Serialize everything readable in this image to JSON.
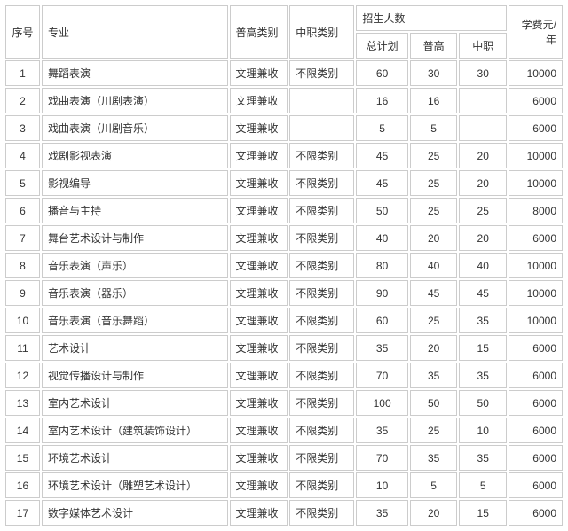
{
  "table": {
    "headers": {
      "seq": "序号",
      "major": "专业",
      "pugao_type": "普高类别",
      "zhongzhi_type": "中职类别",
      "enrollment": "招生人数",
      "total": "总计划",
      "pugao": "普高",
      "zhongzhi": "中职",
      "fee": "学费元/年"
    },
    "rows": [
      {
        "seq": "1",
        "major": "舞蹈表演",
        "pugao_type": "文理兼收",
        "zhongzhi_type": "不限类别",
        "total": "60",
        "pugao": "30",
        "zhongzhi": "30",
        "fee": "10000"
      },
      {
        "seq": "2",
        "major": "戏曲表演（川剧表演）",
        "pugao_type": "文理兼收",
        "zhongzhi_type": "",
        "total": "16",
        "pugao": "16",
        "zhongzhi": "",
        "fee": "6000"
      },
      {
        "seq": "3",
        "major": "戏曲表演（川剧音乐）",
        "pugao_type": "文理兼收",
        "zhongzhi_type": "",
        "total": "5",
        "pugao": "5",
        "zhongzhi": "",
        "fee": "6000"
      },
      {
        "seq": "4",
        "major": "戏剧影视表演",
        "pugao_type": "文理兼收",
        "zhongzhi_type": "不限类别",
        "total": "45",
        "pugao": "25",
        "zhongzhi": "20",
        "fee": "10000"
      },
      {
        "seq": "5",
        "major": "影视编导",
        "pugao_type": "文理兼收",
        "zhongzhi_type": "不限类别",
        "total": "45",
        "pugao": "25",
        "zhongzhi": "20",
        "fee": "10000"
      },
      {
        "seq": "6",
        "major": "播音与主持",
        "pugao_type": "文理兼收",
        "zhongzhi_type": "不限类别",
        "total": "50",
        "pugao": "25",
        "zhongzhi": "25",
        "fee": "8000"
      },
      {
        "seq": "7",
        "major": "舞台艺术设计与制作",
        "pugao_type": "文理兼收",
        "zhongzhi_type": "不限类别",
        "total": "40",
        "pugao": "20",
        "zhongzhi": "20",
        "fee": "6000"
      },
      {
        "seq": "8",
        "major": "音乐表演（声乐）",
        "pugao_type": "文理兼收",
        "zhongzhi_type": "不限类别",
        "total": "80",
        "pugao": "40",
        "zhongzhi": "40",
        "fee": "10000"
      },
      {
        "seq": "9",
        "major": "音乐表演（器乐）",
        "pugao_type": "文理兼收",
        "zhongzhi_type": "不限类别",
        "total": "90",
        "pugao": "45",
        "zhongzhi": "45",
        "fee": "10000"
      },
      {
        "seq": "10",
        "major": "音乐表演（音乐舞蹈）",
        "pugao_type": "文理兼收",
        "zhongzhi_type": "不限类别",
        "total": "60",
        "pugao": "25",
        "zhongzhi": "35",
        "fee": "10000"
      },
      {
        "seq": "11",
        "major": "艺术设计",
        "pugao_type": "文理兼收",
        "zhongzhi_type": "不限类别",
        "total": "35",
        "pugao": "20",
        "zhongzhi": "15",
        "fee": "6000"
      },
      {
        "seq": "12",
        "major": "视觉传播设计与制作",
        "pugao_type": "文理兼收",
        "zhongzhi_type": "不限类别",
        "total": "70",
        "pugao": "35",
        "zhongzhi": "35",
        "fee": "6000"
      },
      {
        "seq": "13",
        "major": "室内艺术设计",
        "pugao_type": "文理兼收",
        "zhongzhi_type": "不限类别",
        "total": "100",
        "pugao": "50",
        "zhongzhi": "50",
        "fee": "6000"
      },
      {
        "seq": "14",
        "major": "室内艺术设计（建筑装饰设计）",
        "pugao_type": "文理兼收",
        "zhongzhi_type": "不限类别",
        "total": "35",
        "pugao": "25",
        "zhongzhi": "10",
        "fee": "6000"
      },
      {
        "seq": "15",
        "major": "环境艺术设计",
        "pugao_type": "文理兼收",
        "zhongzhi_type": "不限类别",
        "total": "70",
        "pugao": "35",
        "zhongzhi": "35",
        "fee": "6000"
      },
      {
        "seq": "16",
        "major": "环境艺术设计（雕塑艺术设计）",
        "pugao_type": "文理兼收",
        "zhongzhi_type": "不限类别",
        "total": "10",
        "pugao": "5",
        "zhongzhi": "5",
        "fee": "6000"
      },
      {
        "seq": "17",
        "major": "数字媒体艺术设计",
        "pugao_type": "文理兼收",
        "zhongzhi_type": "不限类别",
        "total": "35",
        "pugao": "20",
        "zhongzhi": "15",
        "fee": "6000"
      }
    ]
  },
  "styling": {
    "border_color": "#cccccc",
    "background": "#ffffff",
    "text_color": "#333333",
    "font_size": 12,
    "cell_padding": 5,
    "border_spacing": 2,
    "col_widths": {
      "seq": 32,
      "major": 172,
      "pugao_type": 54,
      "zhongzhi_type": 60,
      "total": 48,
      "pugao": 44,
      "zhongzhi": 44,
      "fee": 50
    }
  }
}
